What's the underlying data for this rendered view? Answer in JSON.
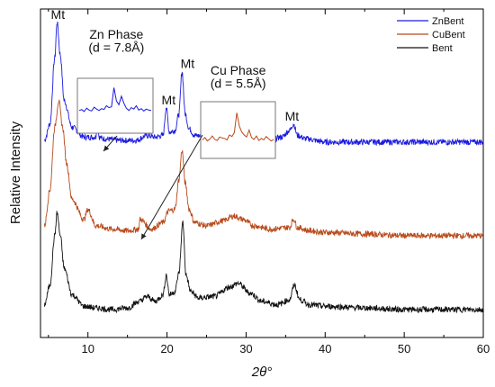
{
  "chart_data": {
    "type": "line",
    "xlabel": "2θ°",
    "ylabel": "Relative Intensity",
    "xlim": [
      4,
      60
    ],
    "xticks": [
      10,
      20,
      30,
      40,
      50,
      60
    ],
    "ylim": [
      0,
      100
    ],
    "grid": false,
    "legend_position": "top-right",
    "series": [
      {
        "name": "ZnBent",
        "color": "#1a1adf",
        "x": [
          4.5,
          5.2,
          5.8,
          6.1,
          6.5,
          7.0,
          8.0,
          9.5,
          10.5,
          11.0,
          11.2,
          11.4,
          12.0,
          14.0,
          16.0,
          17.5,
          18.5,
          19.5,
          19.9,
          20.3,
          21.0,
          21.5,
          21.9,
          22.3,
          22.8,
          23.5,
          25.0,
          27.0,
          29.0,
          31.0,
          33.0,
          34.5,
          35.5,
          36.0,
          36.5,
          37.5,
          40.0,
          45.0,
          50.0,
          55.0,
          60.0
        ],
        "y": [
          60,
          65,
          85,
          96,
          86,
          72,
          64,
          61,
          61,
          61,
          68,
          61,
          60.5,
          60,
          60,
          61.5,
          61,
          61.5,
          70,
          62.5,
          63,
          68,
          81,
          68,
          63.5,
          61.5,
          61,
          60.5,
          61,
          60.5,
          60,
          61,
          63,
          65,
          61.5,
          60.5,
          59.5,
          59.5,
          59.5,
          59.5,
          59.5
        ]
      },
      {
        "name": "CuBent",
        "color": "#b84a1a",
        "x": [
          4.5,
          5.2,
          5.8,
          6.3,
          6.8,
          7.3,
          8.0,
          9.5,
          10.0,
          11.0,
          13.0,
          15.0,
          16.4,
          16.6,
          18.0,
          19.5,
          20.2,
          21.0,
          21.5,
          21.9,
          22.3,
          22.8,
          23.5,
          25.0,
          27.0,
          28.5,
          29.5,
          31.0,
          33.0,
          35.5,
          36.0,
          36.5,
          38.0,
          40.0,
          45.0,
          50.0,
          55.0,
          60.0
        ],
        "y": [
          34,
          45,
          64,
          72,
          64,
          53,
          42,
          36,
          39,
          34,
          33,
          32.5,
          33,
          36,
          33,
          35,
          38.5,
          39,
          48,
          57,
          47,
          39,
          35,
          34,
          35.5,
          37,
          36,
          34,
          33,
          33.5,
          36,
          33.5,
          32.5,
          32,
          31.5,
          31,
          31,
          31
        ]
      },
      {
        "name": "Bent",
        "color": "#111111",
        "x": [
          4.5,
          5.2,
          5.8,
          6.1,
          6.5,
          7.0,
          8.0,
          9.5,
          11.0,
          13.0,
          15.0,
          16.5,
          17.5,
          18.5,
          19.5,
          19.9,
          20.3,
          21.0,
          21.5,
          22.0,
          22.4,
          23.0,
          24.0,
          26.0,
          28.0,
          29.0,
          30.5,
          32.0,
          34.0,
          35.5,
          36.1,
          36.8,
          38.0,
          40.0,
          45.0,
          50.0,
          55.0,
          60.0
        ],
        "y": [
          10,
          16,
          31,
          38,
          31,
          21,
          13,
          9.5,
          9,
          8.5,
          9,
          11,
          12.5,
          11,
          13,
          19,
          13,
          14,
          19.5,
          35,
          19,
          14,
          12,
          12.5,
          15.5,
          16.5,
          13.5,
          11,
          10,
          11.5,
          16,
          11.5,
          10,
          9.5,
          9,
          8.5,
          8.5,
          8.5
        ]
      }
    ],
    "annotations": [
      {
        "text": "Mt",
        "x": 6.2,
        "y": 97
      },
      {
        "text": "Mt",
        "x": 20.2,
        "y": 71
      },
      {
        "text": "Mt",
        "x": 22.6,
        "y": 82
      },
      {
        "text": "Mt",
        "x": 35.8,
        "y": 66
      },
      {
        "text": "Zn Phase",
        "x": 13.6,
        "y": 91
      },
      {
        "text": "(d = 7.8Å)",
        "x": 13.6,
        "y": 87
      },
      {
        "text": "Cu Phase",
        "x": 29.0,
        "y": 80
      },
      {
        "text": "(d = 5.5Å)",
        "x": 29.0,
        "y": 76
      }
    ],
    "insets": [
      {
        "name": "zn-phase-inset",
        "color": "#1a1adf",
        "y": [
          40,
          42,
          38,
          45,
          41,
          39,
          47,
          43,
          40,
          44,
          42,
          50,
          46,
          48,
          88,
          60,
          52,
          70,
          55,
          45,
          40,
          46,
          43,
          50,
          41,
          44,
          39,
          43,
          41,
          40
        ]
      },
      {
        "name": "cu-phase-inset",
        "color": "#b84a1a",
        "y": [
          30,
          35,
          28,
          32,
          38,
          31,
          29,
          36,
          34,
          33,
          30,
          40,
          37,
          45,
          85,
          58,
          46,
          40,
          36,
          50,
          35,
          31,
          38,
          29,
          33,
          30,
          37,
          32,
          28,
          31
        ]
      }
    ]
  }
}
